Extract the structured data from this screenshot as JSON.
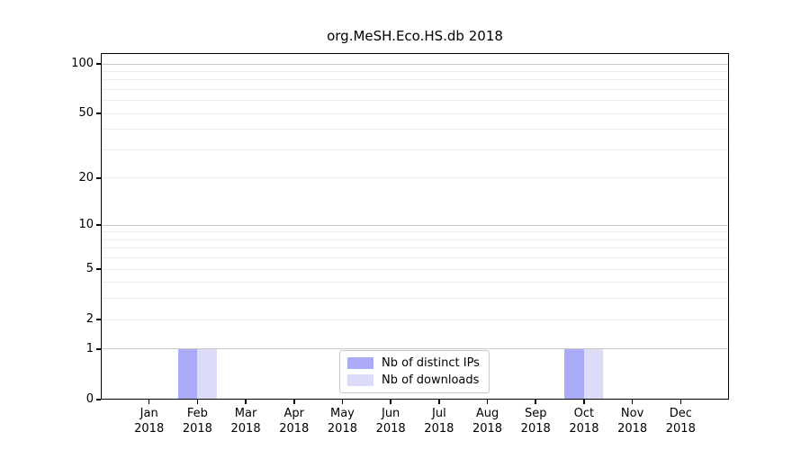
{
  "figure": {
    "background": "#ffffff"
  },
  "chart_data": {
    "type": "bar",
    "title": "org.MeSH.Eco.HS.db 2018",
    "x_categories": [
      "Jan",
      "Feb",
      "Mar",
      "Apr",
      "May",
      "Jun",
      "Jul",
      "Aug",
      "Sep",
      "Oct",
      "Nov",
      "Dec"
    ],
    "x_year": "2018",
    "series": [
      {
        "name": "Nb of distinct IPs",
        "color": "#aaaaf7",
        "values": [
          0,
          1,
          0,
          0,
          0,
          0,
          0,
          0,
          0,
          1,
          0,
          0
        ]
      },
      {
        "name": "Nb of downloads",
        "color": "#dcdcf9",
        "values": [
          0,
          1,
          0,
          0,
          0,
          0,
          0,
          0,
          0,
          1,
          0,
          0
        ]
      }
    ],
    "y_ticks": [
      0,
      1,
      2,
      5,
      10,
      20,
      50,
      100
    ],
    "y_scale": "log10(1+v)",
    "ylim": [
      0,
      110
    ],
    "grid": {
      "major_lines": [
        1,
        10,
        100
      ],
      "minor_lines": [
        2,
        3,
        4,
        5,
        6,
        7,
        8,
        9,
        20,
        30,
        40,
        50,
        60,
        70,
        80,
        90
      ],
      "major_color": "#c8c8c8",
      "minor_color": "#ececec"
    },
    "legend": {
      "position": "lower center",
      "entries": [
        {
          "label": "Nb of distinct IPs",
          "color": "#aaaaf7"
        },
        {
          "label": "Nb of downloads",
          "color": "#dcdcf9"
        }
      ]
    }
  }
}
